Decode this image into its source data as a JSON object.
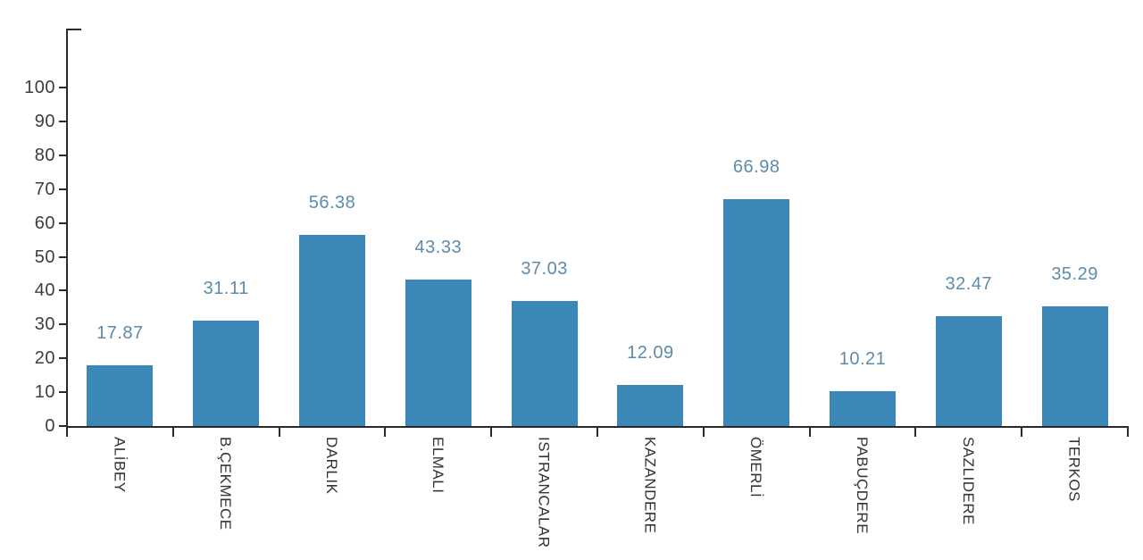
{
  "chart_data": {
    "type": "bar",
    "title": "",
    "categories": [
      "ALİBEY",
      "B.ÇEKMECE",
      "DARLIK",
      "ELMALI",
      "ISTRANCALAR",
      "KAZANDERE",
      "ÖMERLİ",
      "PABUÇDERE",
      "SAZLIDERE",
      "TERKOS"
    ],
    "values": [
      17.87,
      31.11,
      56.38,
      43.33,
      37.03,
      12.09,
      66.98,
      10.21,
      32.47,
      35.29
    ],
    "value_labels": [
      "17.87",
      "31.11",
      "56.38",
      "43.33",
      "37.03",
      "12.09",
      "66.98",
      "10.21",
      "32.47",
      "35.29"
    ],
    "xlabel": "",
    "ylabel": "",
    "ylim": [
      0,
      117
    ],
    "yticks": [
      0,
      10,
      20,
      30,
      40,
      50,
      60,
      70,
      80,
      90,
      100
    ],
    "grid": false,
    "legend_position": "none",
    "colors": {
      "bar_fill": "#3a87b8",
      "value_label": "#5d8bab",
      "axis_line": "#2a2a2a",
      "tick_label": "#3d3d3d",
      "category_label": "#333333",
      "background": "#ffffff"
    }
  }
}
